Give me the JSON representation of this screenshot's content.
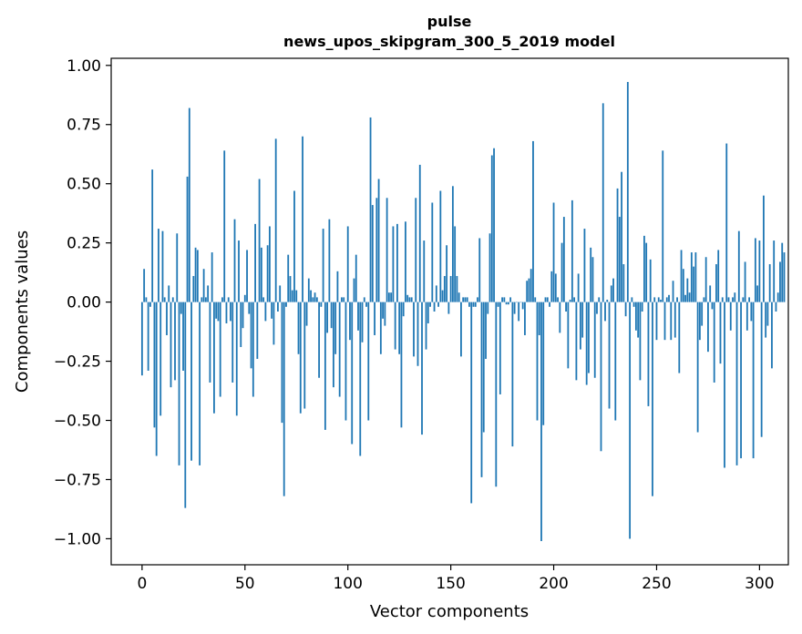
{
  "chart_data": {
    "type": "bar",
    "title": "pulse",
    "subtitle": "news_upos_skipgram_300_5_2019 model",
    "xlabel": "Vector components",
    "ylabel": "Components values",
    "xlim": [
      -15,
      314
    ],
    "ylim": [
      -1.11,
      1.03
    ],
    "xticks": [
      0,
      50,
      100,
      150,
      200,
      250,
      300
    ],
    "yticks": [
      -1.0,
      -0.75,
      -0.5,
      -0.25,
      0.0,
      0.25,
      0.5,
      0.75,
      1.0
    ],
    "xtick_labels": [
      "0",
      "50",
      "100",
      "150",
      "200",
      "250",
      "300"
    ],
    "ytick_labels": [
      "−1.00",
      "−0.75",
      "−0.50",
      "−0.25",
      "0.00",
      "0.25",
      "0.50",
      "0.75",
      "1.00"
    ],
    "grid": false,
    "color": "#1f77b4",
    "values": [
      -0.31,
      0.14,
      0.02,
      -0.29,
      -0.02,
      0.56,
      -0.53,
      -0.65,
      0.31,
      -0.48,
      0.3,
      0.02,
      -0.14,
      0.07,
      -0.36,
      0.02,
      -0.33,
      0.29,
      -0.69,
      -0.05,
      -0.29,
      -0.87,
      0.53,
      0.82,
      -0.67,
      0.11,
      0.23,
      0.22,
      -0.69,
      0.02,
      0.14,
      0.02,
      0.07,
      -0.34,
      0.21,
      -0.47,
      -0.07,
      -0.08,
      -0.4,
      0.02,
      0.64,
      -0.09,
      0.02,
      -0.08,
      -0.34,
      0.35,
      -0.48,
      0.26,
      -0.19,
      -0.11,
      0.03,
      0.22,
      -0.05,
      -0.28,
      -0.4,
      0.33,
      -0.24,
      0.52,
      0.23,
      0.02,
      -0.08,
      0.24,
      0.32,
      -0.07,
      -0.18,
      0.69,
      -0.04,
      0.07,
      -0.51,
      -0.82,
      -0.02,
      0.2,
      0.11,
      0.05,
      0.47,
      0.05,
      -0.22,
      -0.47,
      0.7,
      -0.45,
      -0.1,
      0.1,
      0.05,
      0.02,
      0.04,
      0.02,
      -0.32,
      -0.02,
      0.31,
      -0.54,
      -0.13,
      0.35,
      -0.11,
      -0.36,
      -0.22,
      0.13,
      -0.4,
      0.02,
      0.02,
      -0.5,
      0.32,
      -0.16,
      -0.6,
      0.1,
      0.2,
      -0.12,
      -0.65,
      -0.17,
      0.02,
      -0.02,
      -0.5,
      0.78,
      0.41,
      -0.14,
      0.44,
      0.52,
      -0.22,
      -0.07,
      -0.1,
      0.44,
      0.04,
      0.04,
      0.32,
      -0.2,
      0.33,
      -0.22,
      -0.53,
      -0.06,
      0.34,
      0.03,
      0.02,
      0.02,
      -0.23,
      0.44,
      -0.27,
      0.58,
      -0.56,
      0.26,
      -0.2,
      -0.09,
      -0.02,
      0.42,
      -0.04,
      0.07,
      -0.02,
      0.47,
      0.05,
      0.11,
      0.24,
      -0.05,
      0.11,
      0.49,
      0.32,
      0.11,
      0.04,
      -0.23,
      0.02,
      0.02,
      0.02,
      -0.02,
      -0.85,
      -0.02,
      -0.02,
      0.02,
      0.27,
      -0.74,
      -0.55,
      -0.24,
      -0.05,
      0.29,
      0.62,
      0.65,
      -0.78,
      -0.02,
      -0.39,
      0.02,
      0.02,
      -0.01,
      -0.01,
      0.02,
      -0.61,
      -0.05,
      0.0,
      -0.08,
      0.0,
      -0.03,
      -0.14,
      0.09,
      0.1,
      0.14,
      0.68,
      0.02,
      -0.5,
      -0.14,
      -1.01,
      -0.52,
      0.02,
      0.02,
      -0.02,
      0.13,
      0.42,
      0.12,
      0.02,
      -0.13,
      0.25,
      0.36,
      -0.04,
      -0.28,
      0.01,
      0.43,
      0.02,
      -0.33,
      0.12,
      -0.2,
      -0.15,
      0.31,
      -0.35,
      -0.3,
      0.23,
      0.19,
      -0.32,
      -0.05,
      0.02,
      -0.63,
      0.84,
      -0.08,
      0.01,
      -0.45,
      0.07,
      0.1,
      -0.5,
      0.48,
      0.36,
      0.55,
      0.16,
      -0.06,
      0.93,
      -1.0,
      0.02,
      -0.02,
      -0.12,
      -0.15,
      -0.33,
      -0.04,
      0.28,
      0.25,
      -0.44,
      0.18,
      -0.82,
      0.02,
      -0.16,
      0.02,
      0.01,
      0.64,
      -0.16,
      0.02,
      0.03,
      -0.16,
      0.09,
      -0.15,
      0.02,
      -0.3,
      0.22,
      0.14,
      0.03,
      0.1,
      0.04,
      0.21,
      0.15,
      0.21,
      -0.55,
      -0.16,
      -0.1,
      0.02,
      0.19,
      -0.21,
      0.07,
      -0.03,
      -0.34,
      0.16,
      0.22,
      -0.26,
      0.02,
      -0.7,
      0.67,
      0.02,
      -0.12,
      0.02,
      0.04,
      -0.69,
      0.3,
      -0.66,
      0.02,
      0.17,
      -0.12,
      0.02,
      -0.08,
      -0.66,
      0.27,
      0.07,
      0.26,
      -0.57,
      0.45,
      -0.15,
      -0.1,
      0.16,
      -0.28,
      0.26,
      -0.04,
      0.04,
      0.17,
      0.25,
      0.21
    ]
  }
}
